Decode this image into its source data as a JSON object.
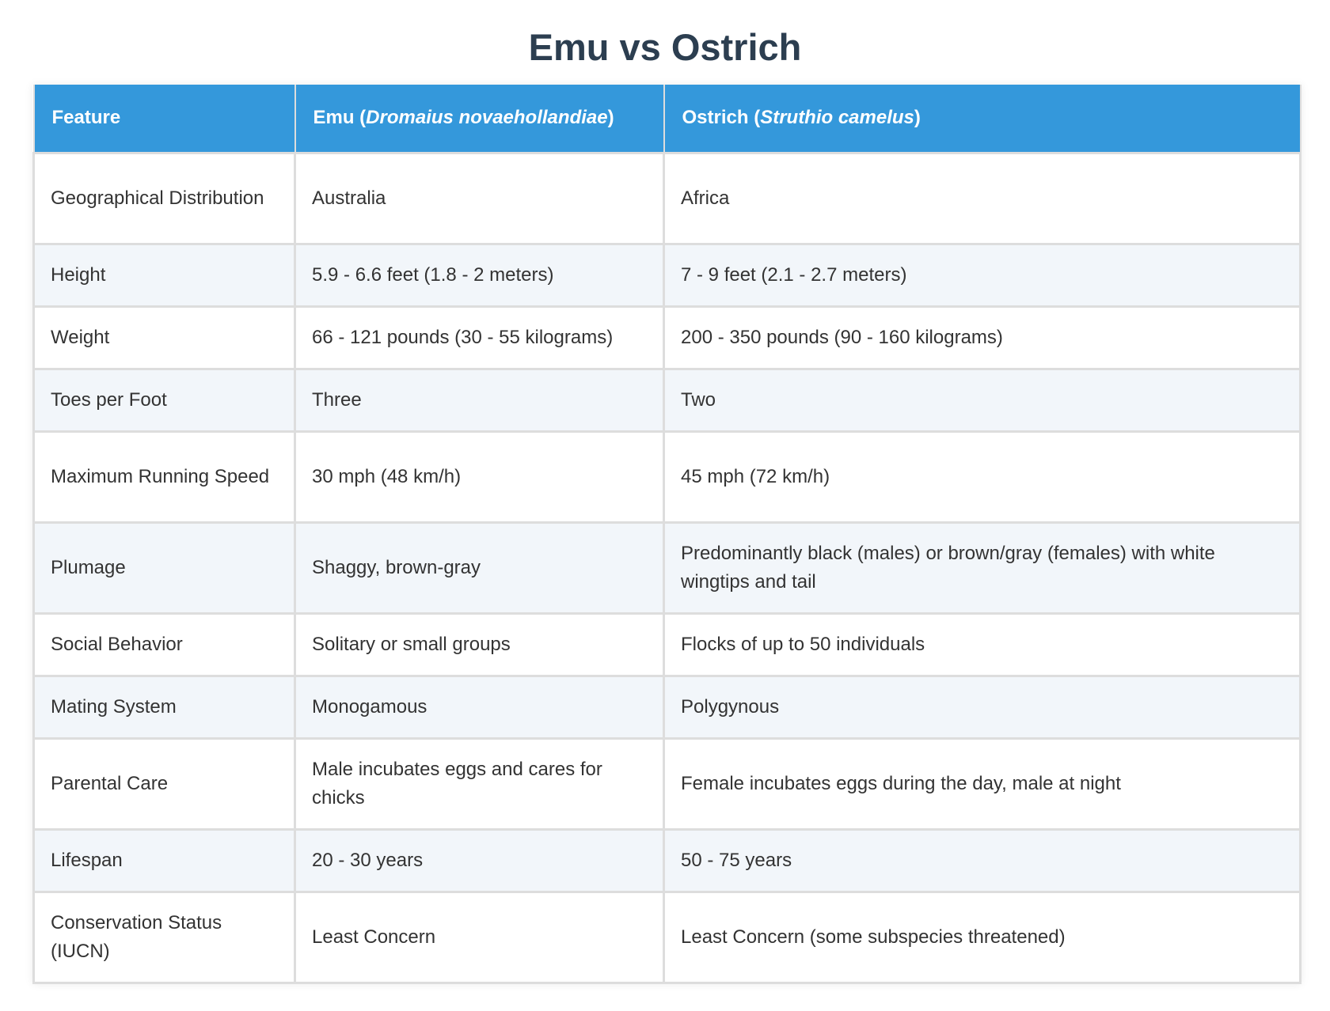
{
  "title": "Emu vs Ostrich",
  "table": {
    "headers": {
      "feature": "Feature",
      "emu_prefix": "Emu (",
      "emu_sci": "Dromaius novaehollandiae",
      "emu_suffix": ")",
      "ostrich_prefix": "Ostrich (",
      "ostrich_sci": "Struthio camelus",
      "ostrich_suffix": ")"
    },
    "rows": [
      {
        "feature": "Geographical Distribution",
        "emu": "Australia",
        "ostrich": "Africa"
      },
      {
        "feature": "Height",
        "emu": "5.9 - 6.6 feet (1.8 - 2 meters)",
        "ostrich": "7 - 9 feet (2.1 - 2.7 meters)"
      },
      {
        "feature": "Weight",
        "emu": "66 - 121 pounds (30 - 55 kilograms)",
        "ostrich": "200 - 350 pounds (90 - 160 kilograms)"
      },
      {
        "feature": "Toes per Foot",
        "emu": "Three",
        "ostrich": "Two"
      },
      {
        "feature": "Maximum Running Speed",
        "emu": "30 mph (48 km/h)",
        "ostrich": "45 mph (72 km/h)"
      },
      {
        "feature": "Plumage",
        "emu": "Shaggy, brown-gray",
        "ostrich": "Predominantly black (males) or brown/gray (females) with white wingtips and tail"
      },
      {
        "feature": "Social Behavior",
        "emu": "Solitary or small groups",
        "ostrich": "Flocks of up to 50 individuals"
      },
      {
        "feature": "Mating System",
        "emu": "Monogamous",
        "ostrich": "Polygynous"
      },
      {
        "feature": "Parental Care",
        "emu": "Male incubates eggs and cares for chicks",
        "ostrich": "Female incubates eggs during the day, male at night"
      },
      {
        "feature": "Lifespan",
        "emu": "20 - 30 years",
        "ostrich": "50 - 75 years"
      },
      {
        "feature": "Conservation Status (IUCN)",
        "emu": "Least Concern",
        "ostrich": "Least Concern (some subspecies threatened)"
      }
    ]
  },
  "colors": {
    "header_bg": "#3498db",
    "title": "#2c3e50",
    "row_alt_bg": "#f2f6fa"
  }
}
